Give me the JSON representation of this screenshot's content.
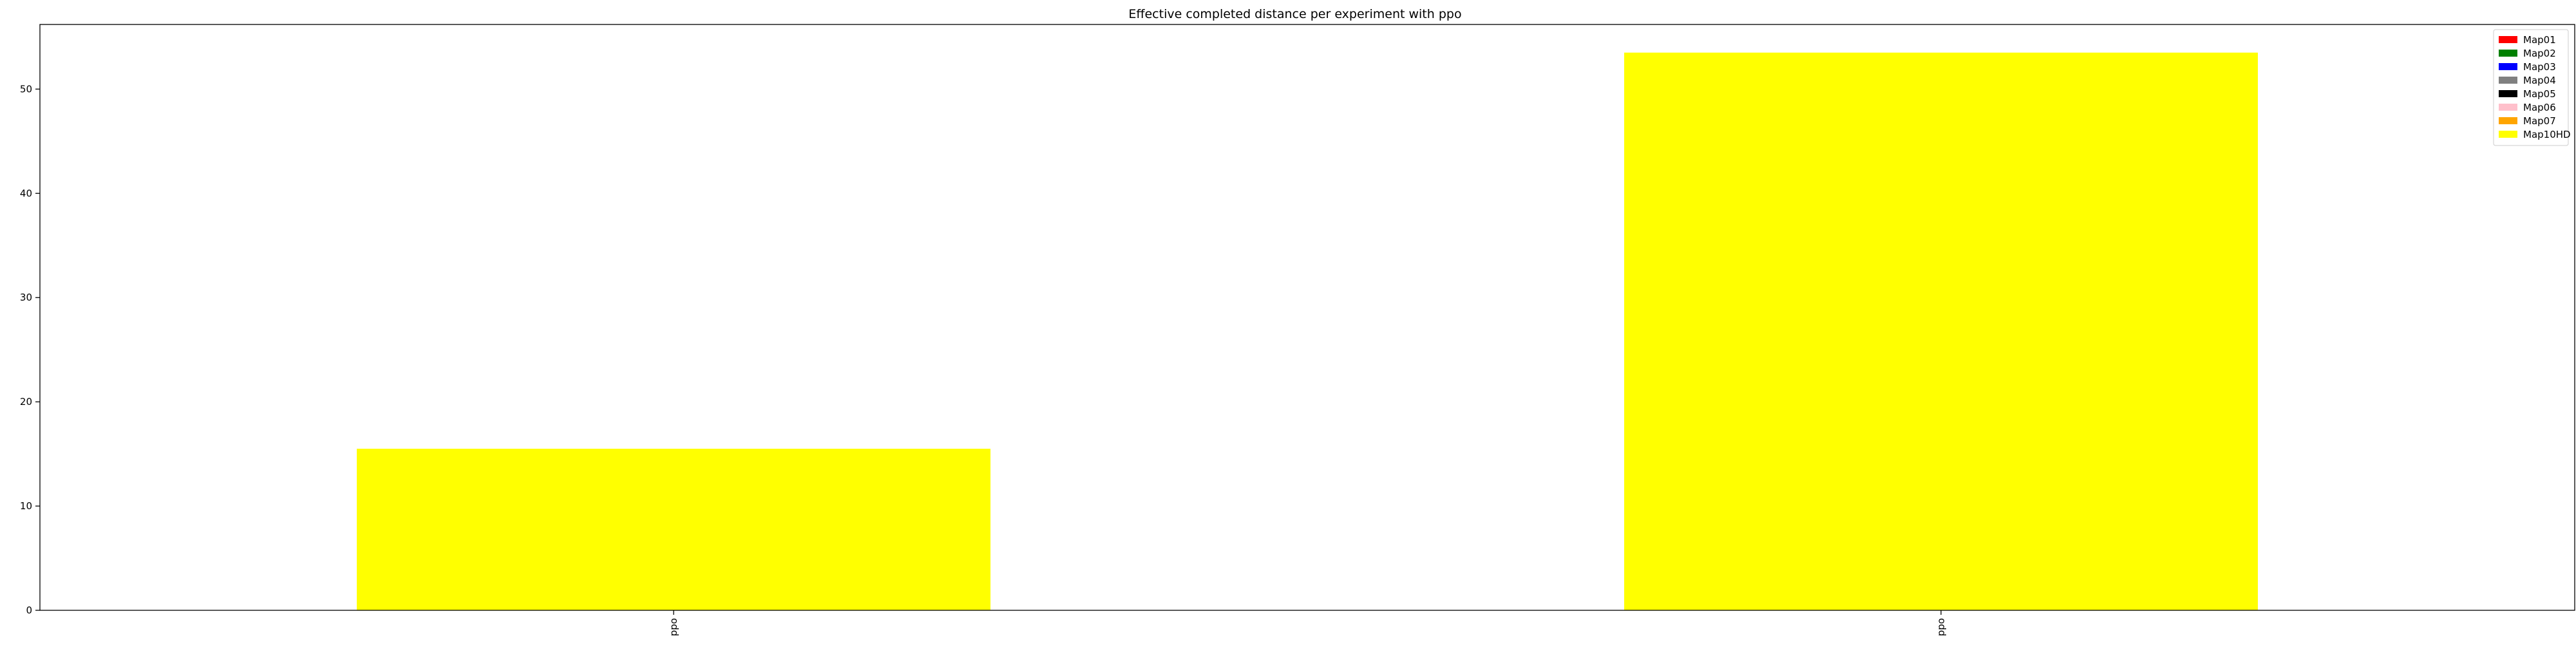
{
  "chart_data": {
    "type": "bar",
    "title": "Effective completed distance per experiment with ppo",
    "xlabel": "",
    "ylabel": "",
    "categories": [
      "ppo",
      "ppo"
    ],
    "series": [
      {
        "name": "Map01",
        "color": "#ff0000",
        "values": [
          0,
          0
        ]
      },
      {
        "name": "Map02",
        "color": "#008000",
        "values": [
          0,
          0
        ]
      },
      {
        "name": "Map03",
        "color": "#0000ff",
        "values": [
          0,
          0
        ]
      },
      {
        "name": "Map04",
        "color": "#808080",
        "values": [
          0,
          0
        ]
      },
      {
        "name": "Map05",
        "color": "#000000",
        "values": [
          0,
          0
        ]
      },
      {
        "name": "Map06",
        "color": "#ffc0cb",
        "values": [
          0,
          0
        ]
      },
      {
        "name": "Map07",
        "color": "#ffa500",
        "values": [
          0,
          0
        ]
      },
      {
        "name": "Map10HD",
        "color": "#ffff00",
        "values": [
          15.5,
          53.5
        ]
      }
    ],
    "stacked": true,
    "ylim": [
      0,
      56.2
    ],
    "yticks": [
      0,
      10,
      20,
      30,
      40,
      50
    ],
    "grid": false,
    "legend_position": "top-right"
  }
}
